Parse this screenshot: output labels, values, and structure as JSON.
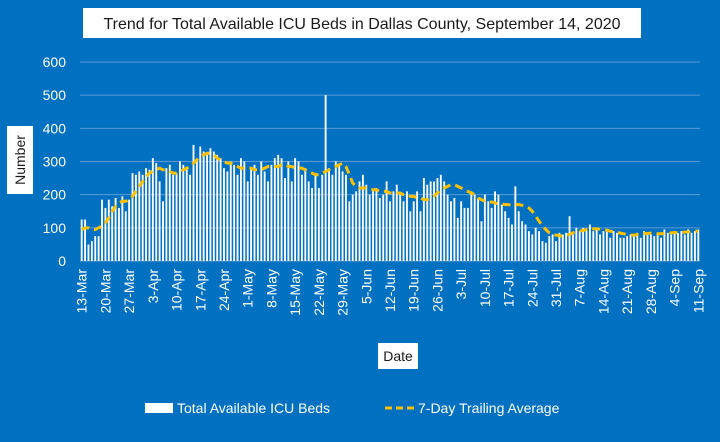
{
  "chart_data": {
    "type": "bar",
    "title": "Trend for Total Available ICU Beds in Dallas County, September 14, 2020",
    "xlabel": "Date",
    "ylabel": "Number",
    "ylim": [
      0,
      600
    ],
    "yticks": [
      0,
      100,
      200,
      300,
      400,
      500,
      600
    ],
    "grid": true,
    "legend_position": "bottom",
    "x_tick_labels": [
      "13-Mar",
      "20-Mar",
      "27-Mar",
      "3-Apr",
      "10-Apr",
      "17-Apr",
      "24-Apr",
      "1-May",
      "8-May",
      "15-May",
      "22-May",
      "29-May",
      "5-Jun",
      "12-Jun",
      "19-Jun",
      "26-Jun",
      "3-Jul",
      "10-Jul",
      "17-Jul",
      "24-Jul",
      "31-Jul",
      "7-Aug",
      "14-Aug",
      "21-Aug",
      "28-Aug",
      "4-Sep",
      "11-Sep"
    ],
    "colors": {
      "background": "#0070C0",
      "bars": "#FFFFFF",
      "trailing_average": "#FFC000",
      "grid": "#5B9BD5"
    },
    "series": [
      {
        "name": "Total Available ICU Beds",
        "type": "bar",
        "values": [
          125,
          125,
          50,
          60,
          75,
          75,
          185,
          160,
          185,
          165,
          190,
          160,
          195,
          150,
          185,
          265,
          260,
          270,
          260,
          280,
          275,
          310,
          295,
          240,
          180,
          280,
          290,
          260,
          265,
          300,
          290,
          280,
          260,
          350,
          300,
          345,
          330,
          320,
          340,
          330,
          320,
          310,
          280,
          270,
          300,
          290,
          260,
          310,
          300,
          240,
          280,
          290,
          260,
          300,
          270,
          240,
          290,
          310,
          320,
          310,
          250,
          300,
          240,
          310,
          300,
          260,
          280,
          240,
          220,
          260,
          220,
          260,
          500,
          280,
          260,
          300,
          290,
          270,
          260,
          180,
          200,
          210,
          240,
          260,
          230,
          200,
          210,
          220,
          190,
          200,
          240,
          180,
          210,
          230,
          200,
          180,
          210,
          150,
          180,
          210,
          150,
          250,
          230,
          240,
          240,
          250,
          260,
          240,
          200,
          180,
          190,
          130,
          180,
          160,
          160,
          210,
          200,
          190,
          120,
          200,
          180,
          160,
          210,
          200,
          170,
          150,
          130,
          110,
          225,
          150,
          120,
          110,
          90,
          80,
          100,
          90,
          60,
          55,
          75,
          80,
          60,
          85,
          80,
          85,
          135,
          80,
          100,
          90,
          100,
          95,
          110,
          90,
          100,
          80,
          90,
          95,
          70,
          90,
          85,
          70,
          70,
          75,
          80,
          75,
          85,
          70,
          90,
          80,
          80,
          75,
          85,
          70,
          95,
          85,
          80,
          90,
          85,
          90,
          80,
          95,
          85,
          90,
          95
        ]
      },
      {
        "name": "7-Day Trailing Average",
        "type": "line",
        "values": [
          95,
          100,
          100,
          95,
          95,
          100,
          105,
          115,
          130,
          150,
          165,
          175,
          180,
          180,
          185,
          195,
          210,
          225,
          240,
          255,
          265,
          270,
          275,
          280,
          275,
          275,
          270,
          265,
          265,
          270,
          275,
          280,
          285,
          295,
          305,
          315,
          320,
          325,
          325,
          320,
          310,
          305,
          300,
          295,
          295,
          290,
          285,
          280,
          280,
          280,
          280,
          275,
          275,
          275,
          280,
          285,
          285,
          285,
          285,
          290,
          290,
          285,
          285,
          280,
          280,
          280,
          275,
          270,
          265,
          260,
          260,
          265,
          270,
          275,
          280,
          285,
          290,
          295,
          285,
          260,
          235,
          225,
          220,
          220,
          220,
          215,
          215,
          215,
          210,
          210,
          210,
          205,
          205,
          205,
          205,
          200,
          200,
          195,
          195,
          190,
          190,
          185,
          185,
          190,
          195,
          205,
          215,
          220,
          225,
          230,
          230,
          225,
          220,
          215,
          210,
          205,
          200,
          190,
          185,
          180,
          178,
          178,
          175,
          172,
          172,
          170,
          170,
          168,
          170,
          170,
          168,
          165,
          160,
          150,
          135,
          120,
          105,
          95,
          85,
          80,
          78,
          76,
          75,
          78,
          80,
          85,
          88,
          90,
          92,
          95,
          96,
          97,
          97,
          96,
          95,
          93,
          90,
          88,
          86,
          84,
          82,
          80,
          78,
          78,
          80,
          82,
          83,
          83,
          84,
          83,
          82,
          82,
          83,
          84,
          85,
          86,
          85,
          86,
          87,
          88,
          89,
          90,
          90
        ]
      }
    ]
  }
}
